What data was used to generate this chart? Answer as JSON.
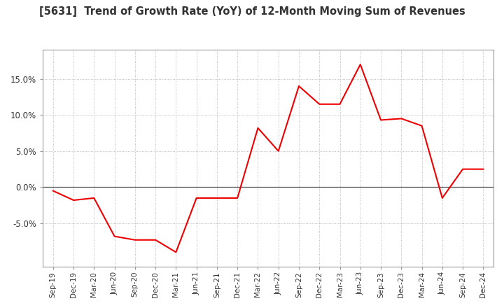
{
  "title": "[5631]  Trend of Growth Rate (YoY) of 12-Month Moving Sum of Revenues",
  "title_fontsize": 10.5,
  "line_color": "#ee0000",
  "background_color": "#ffffff",
  "grid_color": "#aaaaaa",
  "x_labels": [
    "Sep-19",
    "Dec-19",
    "Mar-20",
    "Jun-20",
    "Sep-20",
    "Dec-20",
    "Mar-21",
    "Jun-21",
    "Sep-21",
    "Dec-21",
    "Mar-22",
    "Jun-22",
    "Sep-22",
    "Dec-22",
    "Mar-23",
    "Jun-23",
    "Sep-23",
    "Dec-23",
    "Mar-24",
    "Jun-24",
    "Sep-24",
    "Dec-24"
  ],
  "y_values": [
    -0.5,
    -1.8,
    -1.5,
    -6.8,
    -7.3,
    -7.3,
    -9.0,
    -1.5,
    -1.5,
    -1.5,
    8.2,
    5.0,
    14.0,
    11.5,
    11.5,
    17.0,
    9.3,
    9.5,
    8.5,
    -1.5,
    2.5,
    2.5
  ],
  "ylim": [
    -11,
    19
  ],
  "yticks": [
    -5.0,
    0.0,
    5.0,
    10.0,
    15.0
  ]
}
